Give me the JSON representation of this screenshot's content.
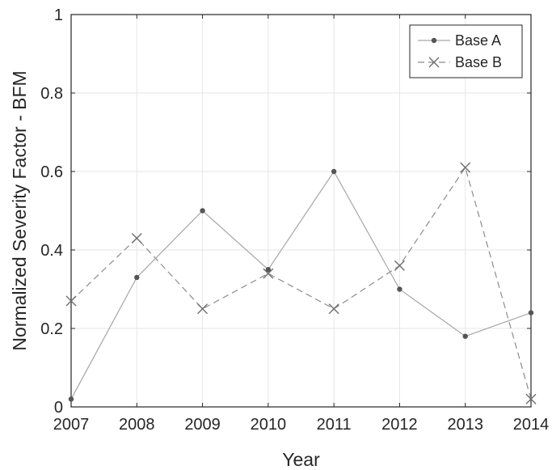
{
  "chart_data": {
    "type": "line",
    "x": [
      2007,
      2008,
      2009,
      2010,
      2011,
      2012,
      2013,
      2014
    ],
    "xlabel": "Year",
    "ylabel": "Normalized Severity Factor - BFM",
    "xlim": [
      2007,
      2014
    ],
    "ylim": [
      0,
      1
    ],
    "x_ticks": [
      "2007",
      "2008",
      "2009",
      "2010",
      "2011",
      "2012",
      "2013",
      "2014"
    ],
    "y_ticks": [
      {
        "value": 0,
        "label": "0"
      },
      {
        "value": 0.2,
        "label": "0.2"
      },
      {
        "value": 0.4,
        "label": "0.4"
      },
      {
        "value": 0.6,
        "label": "0.6"
      },
      {
        "value": 0.8,
        "label": "0.8"
      },
      {
        "value": 1,
        "label": "1"
      }
    ],
    "grid": true,
    "legend_position": "top-right",
    "series": [
      {
        "name": "Base A",
        "values": [
          0.02,
          0.33,
          0.5,
          0.35,
          0.6,
          0.3,
          0.18,
          0.24
        ],
        "line_style": "solid",
        "marker": "dot",
        "color": "#a6a6a6",
        "marker_color": "#555555"
      },
      {
        "name": "Base B",
        "values": [
          0.27,
          0.43,
          0.25,
          0.34,
          0.25,
          0.36,
          0.61,
          0.02
        ],
        "line_style": "dashed",
        "marker": "x",
        "color": "#8c8c8c",
        "marker_color": "#6e6e6e"
      }
    ]
  }
}
